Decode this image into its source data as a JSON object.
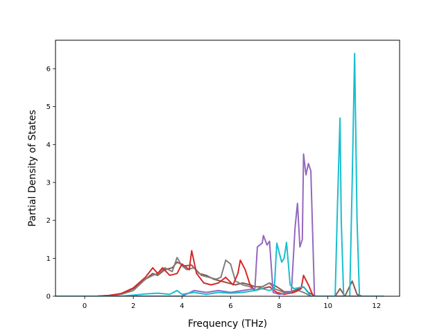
{
  "chart_data": {
    "type": "line",
    "title": "",
    "xlabel": "Frequency (THz)",
    "ylabel": "Partial Density of States",
    "xlim": [
      -1.2,
      12.95
    ],
    "ylim": [
      0,
      6.75
    ],
    "xticks": [
      0,
      2,
      4,
      6,
      8,
      10,
      12
    ],
    "yticks": [
      0,
      1,
      2,
      3,
      4,
      5,
      6
    ],
    "grid": false,
    "legend": "none",
    "series": [
      {
        "color": "#8c564b",
        "points": [
          [
            -1.2,
            0
          ],
          [
            0.5,
            0
          ],
          [
            1.0,
            0.02
          ],
          [
            1.5,
            0.06
          ],
          [
            2.0,
            0.2
          ],
          [
            2.5,
            0.45
          ],
          [
            2.8,
            0.6
          ],
          [
            3.0,
            0.55
          ],
          [
            3.3,
            0.7
          ],
          [
            3.6,
            0.75
          ],
          [
            3.8,
            0.9
          ],
          [
            4.1,
            0.8
          ],
          [
            4.4,
            0.82
          ],
          [
            4.7,
            0.6
          ],
          [
            5.0,
            0.55
          ],
          [
            5.3,
            0.45
          ],
          [
            5.6,
            0.4
          ],
          [
            5.9,
            0.35
          ],
          [
            6.2,
            0.3
          ],
          [
            6.5,
            0.35
          ],
          [
            6.8,
            0.3
          ],
          [
            7.0,
            0.25
          ],
          [
            7.3,
            0.25
          ],
          [
            7.6,
            0.35
          ],
          [
            7.9,
            0.25
          ],
          [
            8.2,
            0.12
          ],
          [
            8.5,
            0.12
          ],
          [
            8.8,
            0.2
          ],
          [
            9.0,
            0.25
          ],
          [
            9.2,
            0.1
          ],
          [
            9.5,
            0
          ],
          [
            10.0,
            0
          ],
          [
            10.3,
            0
          ],
          [
            10.5,
            0.2
          ],
          [
            10.7,
            0
          ],
          [
            11.0,
            0.4
          ],
          [
            11.2,
            0.05
          ],
          [
            11.4,
            0
          ],
          [
            12.3,
            0
          ]
        ]
      },
      {
        "color": "#7f7f7f",
        "points": [
          [
            -1.2,
            0
          ],
          [
            0.5,
            0
          ],
          [
            1.0,
            0.01
          ],
          [
            1.5,
            0.05
          ],
          [
            2.0,
            0.15
          ],
          [
            2.5,
            0.45
          ],
          [
            2.8,
            0.55
          ],
          [
            3.0,
            0.6
          ],
          [
            3.3,
            0.75
          ],
          [
            3.6,
            0.65
          ],
          [
            3.8,
            1.02
          ],
          [
            4.0,
            0.8
          ],
          [
            4.2,
            0.7
          ],
          [
            4.5,
            0.75
          ],
          [
            4.8,
            0.55
          ],
          [
            5.1,
            0.5
          ],
          [
            5.4,
            0.45
          ],
          [
            5.6,
            0.5
          ],
          [
            5.8,
            0.95
          ],
          [
            6.0,
            0.85
          ],
          [
            6.2,
            0.4
          ],
          [
            6.5,
            0.3
          ],
          [
            6.8,
            0.25
          ],
          [
            7.0,
            0.15
          ],
          [
            7.3,
            0.25
          ],
          [
            7.6,
            0.35
          ],
          [
            7.8,
            0.2
          ],
          [
            8.2,
            0.1
          ],
          [
            8.5,
            0.08
          ],
          [
            8.8,
            0.15
          ],
          [
            9.0,
            0.1
          ],
          [
            9.3,
            0
          ],
          [
            12.3,
            0
          ]
        ]
      },
      {
        "color": "#d62728",
        "points": [
          [
            -1.2,
            0
          ],
          [
            0.5,
            0
          ],
          [
            1.0,
            0.02
          ],
          [
            1.5,
            0.07
          ],
          [
            2.0,
            0.22
          ],
          [
            2.5,
            0.5
          ],
          [
            2.8,
            0.75
          ],
          [
            3.0,
            0.6
          ],
          [
            3.2,
            0.75
          ],
          [
            3.5,
            0.55
          ],
          [
            3.8,
            0.6
          ],
          [
            4.0,
            0.85
          ],
          [
            4.3,
            0.7
          ],
          [
            4.4,
            1.2
          ],
          [
            4.6,
            0.6
          ],
          [
            4.9,
            0.35
          ],
          [
            5.2,
            0.3
          ],
          [
            5.5,
            0.35
          ],
          [
            5.8,
            0.5
          ],
          [
            6.1,
            0.3
          ],
          [
            6.3,
            0.6
          ],
          [
            6.4,
            0.95
          ],
          [
            6.6,
            0.7
          ],
          [
            6.8,
            0.3
          ],
          [
            7.0,
            0.15
          ],
          [
            7.3,
            0.2
          ],
          [
            7.6,
            0.25
          ],
          [
            7.9,
            0.1
          ],
          [
            8.2,
            0.05
          ],
          [
            8.6,
            0.1
          ],
          [
            8.9,
            0.2
          ],
          [
            9.0,
            0.55
          ],
          [
            9.2,
            0.3
          ],
          [
            9.4,
            0
          ],
          [
            12.3,
            0
          ]
        ]
      },
      {
        "color": "#9467bd",
        "points": [
          [
            -1.2,
            0
          ],
          [
            4.0,
            0
          ],
          [
            4.5,
            0.15
          ],
          [
            5.0,
            0.1
          ],
          [
            5.5,
            0.15
          ],
          [
            6.0,
            0.1
          ],
          [
            6.5,
            0.15
          ],
          [
            7.0,
            0.2
          ],
          [
            7.1,
            1.3
          ],
          [
            7.3,
            1.4
          ],
          [
            7.35,
            1.6
          ],
          [
            7.5,
            1.35
          ],
          [
            7.6,
            1.45
          ],
          [
            7.75,
            0.1
          ],
          [
            8.0,
            0.05
          ],
          [
            8.5,
            0.1
          ],
          [
            8.65,
            1.8
          ],
          [
            8.75,
            2.45
          ],
          [
            8.85,
            1.3
          ],
          [
            8.95,
            1.5
          ],
          [
            9.0,
            3.75
          ],
          [
            9.1,
            3.2
          ],
          [
            9.2,
            3.5
          ],
          [
            9.3,
            3.3
          ],
          [
            9.45,
            0
          ],
          [
            12.3,
            0
          ]
        ]
      },
      {
        "color": "#17becf",
        "points": [
          [
            -1.2,
            0
          ],
          [
            1.5,
            0
          ],
          [
            2.0,
            0.03
          ],
          [
            2.5,
            0.06
          ],
          [
            3.0,
            0.08
          ],
          [
            3.5,
            0.05
          ],
          [
            3.8,
            0.15
          ],
          [
            4.0,
            0.05
          ],
          [
            4.5,
            0.1
          ],
          [
            5.0,
            0.05
          ],
          [
            5.5,
            0.1
          ],
          [
            6.0,
            0.08
          ],
          [
            6.5,
            0.1
          ],
          [
            7.0,
            0.15
          ],
          [
            7.3,
            0.2
          ],
          [
            7.6,
            0.15
          ],
          [
            7.8,
            0.2
          ],
          [
            7.9,
            1.4
          ],
          [
            8.1,
            0.9
          ],
          [
            8.2,
            1.0
          ],
          [
            8.3,
            1.42
          ],
          [
            8.45,
            0.3
          ],
          [
            8.6,
            0.2
          ],
          [
            9.0,
            0.25
          ],
          [
            9.3,
            0
          ],
          [
            10.3,
            0
          ],
          [
            10.4,
            2.5
          ],
          [
            10.5,
            4.7
          ],
          [
            10.55,
            2.0
          ],
          [
            10.65,
            0
          ],
          [
            10.9,
            0
          ],
          [
            11.0,
            3.0
          ],
          [
            11.1,
            6.4
          ],
          [
            11.2,
            2.0
          ],
          [
            11.3,
            0
          ],
          [
            12.3,
            0
          ]
        ]
      }
    ]
  }
}
